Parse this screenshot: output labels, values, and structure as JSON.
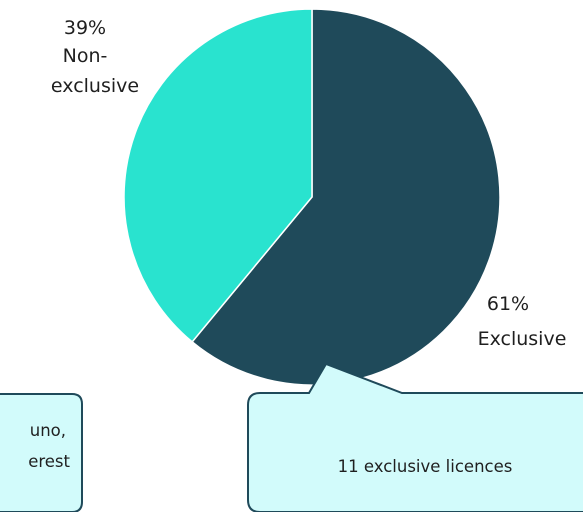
{
  "chart_data": {
    "type": "pie",
    "slices": [
      {
        "label": "Exclusive",
        "percent_label": "61%",
        "value": 61,
        "color": "#1f4a5a"
      },
      {
        "label": "Non-exclusive",
        "label_lines": [
          "Non-",
          "exclusive"
        ],
        "percent_label": "39%",
        "value": 39,
        "color": "#29e3cf"
      }
    ],
    "start_angle_deg": 0,
    "direction": "clockwise"
  },
  "callouts": {
    "left": {
      "lines": [
        "uno,",
        "erest"
      ]
    },
    "right": {
      "text": "11 exclusive licences"
    }
  },
  "colors": {
    "callout_fill": "#d2fbfb",
    "callout_border": "#1f4a5a"
  }
}
